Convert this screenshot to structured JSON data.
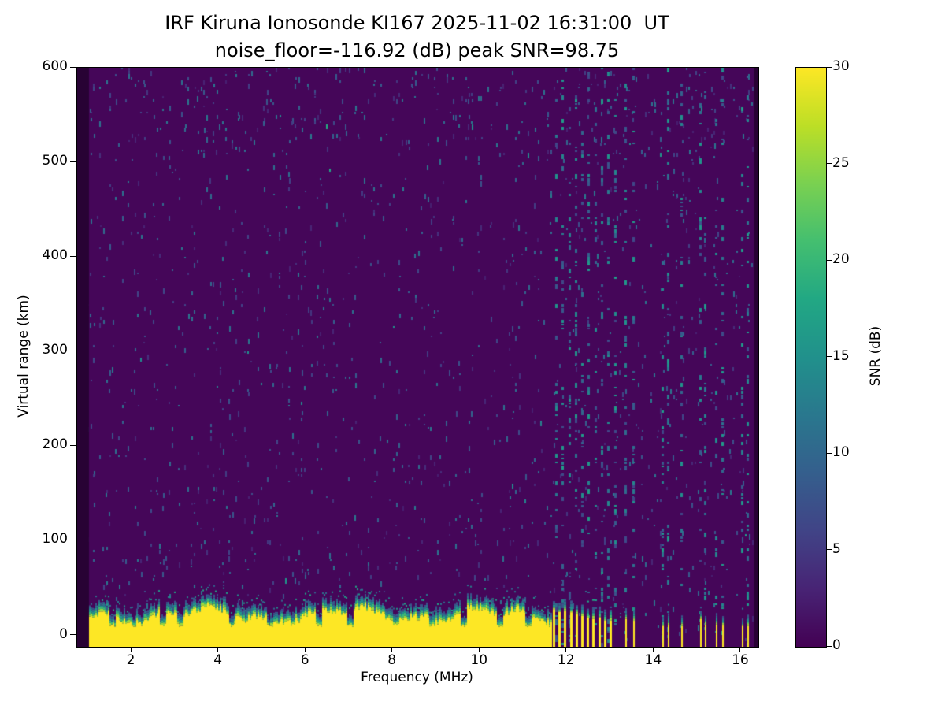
{
  "chart_data": {
    "type": "heatmap",
    "title": "IRF Kiruna Ionosonde KI167 2025-11-02 16:31:00  UT",
    "subtitle": "noise_floor=-116.92 (dB) peak SNR=98.75",
    "xlabel": "Frequency (MHz)",
    "ylabel": "Virtual range (km)",
    "x_range": [
      0.75,
      16.4
    ],
    "y_range": [
      -12,
      600
    ],
    "x_ticks": [
      2,
      4,
      6,
      8,
      10,
      12,
      14,
      16
    ],
    "y_ticks": [
      0,
      100,
      200,
      300,
      400,
      500,
      600
    ],
    "colorbar": {
      "label": "SNR (dB)",
      "range": [
        0,
        30
      ],
      "ticks": [
        0,
        5,
        10,
        15,
        20,
        25,
        30
      ]
    },
    "colormap": {
      "name": "viridis",
      "stops": [
        [
          0,
          "#440154"
        ],
        [
          0.1,
          "#482475"
        ],
        [
          0.2,
          "#414487"
        ],
        [
          0.3,
          "#355f8d"
        ],
        [
          0.4,
          "#2a788e"
        ],
        [
          0.5,
          "#21918c"
        ],
        [
          0.6,
          "#22a884"
        ],
        [
          0.7,
          "#44bf70"
        ],
        [
          0.8,
          "#7ad151"
        ],
        [
          0.9,
          "#bddf26"
        ],
        [
          1,
          "#fde725"
        ]
      ]
    },
    "features": {
      "background_snr_db": 0,
      "noise_speckle": {
        "density": 0.035,
        "snr_db_range": [
          1,
          12
        ]
      },
      "no_data_bands_mhz": [
        [
          0.75,
          1.02
        ],
        [
          16.3,
          16.4
        ]
      ],
      "ground_echo": {
        "freq_start_mhz": 1.02,
        "freq_end_mhz": 11.65,
        "base_top_km": 22,
        "jitter_km": 8,
        "notch_freqs_mhz": [
          1.55,
          2.7,
          3.1,
          4.3,
          5.15,
          6.3,
          7.0,
          8.05,
          8.9,
          9.6,
          10.45,
          11.1
        ],
        "notch_top_km": 9,
        "snr_db": 30
      },
      "interference_comb": {
        "freq_start_mhz": 11.68,
        "freq_end_mhz": 13.1,
        "spacing_mhz": 0.13,
        "top_km_start": 26,
        "top_km_end": 14
      },
      "interference_lines_mhz": [
        13.34,
        13.52,
        14.2,
        14.32,
        14.62,
        15.07,
        15.17,
        15.43,
        15.57,
        16.02,
        16.14
      ],
      "interference_line_top_km": 16,
      "speckle_columns_mhz": [
        11.75,
        11.9,
        12.05,
        12.2,
        12.35,
        12.5,
        12.65,
        12.8,
        12.95,
        13.1,
        13.34,
        13.52,
        14.2,
        14.32,
        14.62,
        15.07,
        15.17,
        15.43,
        15.57,
        16.02,
        16.14
      ],
      "speckle_column_density": 0.2
    }
  }
}
